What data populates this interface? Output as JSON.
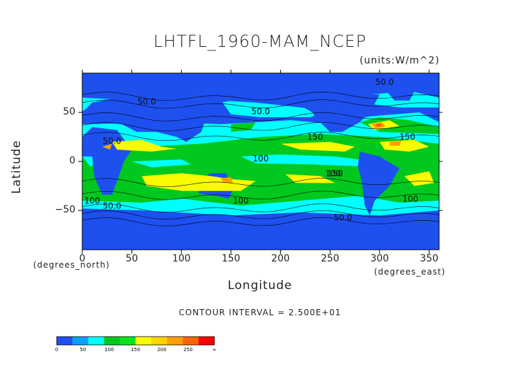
{
  "chart_data": {
    "type": "heatmap",
    "title": "LHTFL_1960-MAM_NCEP",
    "units": "(units:W/m^2)",
    "xlabel": "Longitude",
    "ylabel": "Latitude",
    "x_unit_note": "(degrees_east)",
    "y_unit_note": "(degrees_north)",
    "xlim": [
      0,
      360
    ],
    "ylim": [
      -90,
      90
    ],
    "x_ticks": [
      0,
      50,
      100,
      150,
      200,
      250,
      300,
      350
    ],
    "x_tick_labels": [
      "0",
      "50",
      "100",
      "150",
      "200",
      "250",
      "300",
      "350"
    ],
    "y_ticks": [
      50,
      0,
      -50
    ],
    "y_tick_labels": [
      "50",
      "0",
      "−50"
    ],
    "contour_interval": "CONTOUR INTERVAL = 2.500E+01",
    "contour_labels": [
      {
        "text": "50.0",
        "lon": 65,
        "lat": 58
      },
      {
        "text": "50.0",
        "lon": 180,
        "lat": 48
      },
      {
        "text": "50.0",
        "lon": 305,
        "lat": 78
      },
      {
        "text": "50.0",
        "lon": 30,
        "lat": 18
      },
      {
        "text": "100",
        "lon": 180,
        "lat": 0
      },
      {
        "text": "150",
        "lon": 235,
        "lat": 22
      },
      {
        "text": "150",
        "lon": 255,
        "lat": -15
      },
      {
        "text": "100",
        "lon": 253,
        "lat": -15
      },
      {
        "text": "150",
        "lon": 328,
        "lat": 22
      },
      {
        "text": "100",
        "lon": 331,
        "lat": -41
      },
      {
        "text": "100",
        "lon": 10,
        "lat": -43
      },
      {
        "text": "50.0",
        "lon": 30,
        "lat": -48
      },
      {
        "text": "100",
        "lon": 160,
        "lat": -43
      },
      {
        "text": "50.0",
        "lon": 263,
        "lat": -60
      }
    ],
    "colorbar": {
      "levels": [
        "0",
        "50",
        "100",
        "150",
        "200",
        "250",
        "∞"
      ],
      "colors": [
        "#1e50f0",
        "#0aa0ff",
        "#00ffff",
        "#00c81e",
        "#00e61e",
        "#fafa00",
        "#ffd200",
        "#ffa000",
        "#ff6400",
        "#ff0000"
      ]
    }
  }
}
